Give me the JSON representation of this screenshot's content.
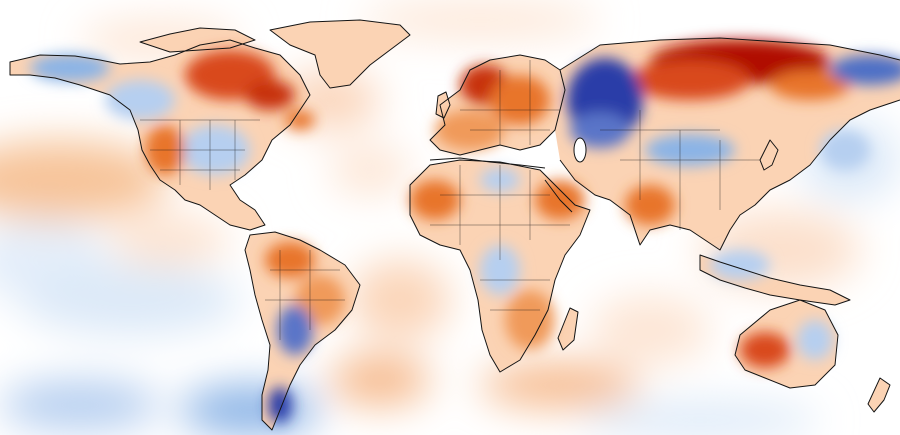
{
  "map": {
    "type": "temperature-anomaly-world-map",
    "projection": "equirectangular",
    "colors": {
      "ocean_base": "#ffffff",
      "strong_warm": "#b01000",
      "warm": "#e8752c",
      "mild_warm": "#f8c8a0",
      "light_warm": "#fde6d6",
      "light_cool": "#dce9f8",
      "cool": "#8bb4e6",
      "strong_cool": "#2b3ea8",
      "coastline": "#141414"
    },
    "legend": null
  }
}
